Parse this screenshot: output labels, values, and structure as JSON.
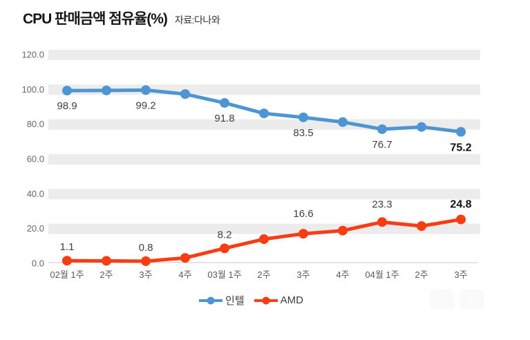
{
  "header": {
    "title": "CPU 판매금액 점유율(%)",
    "source": "자료:다나와"
  },
  "chart_data": {
    "type": "line",
    "title": "CPU 판매금액 점유율(%)",
    "source_note": "자료:다나와",
    "categories": [
      "02월 1주",
      "2주",
      "3주",
      "4주",
      "03월 1주",
      "2주",
      "3주",
      "4주",
      "04월 1주",
      "2주",
      "3주"
    ],
    "series": [
      {
        "name": "인텔",
        "color": "#4E95D4",
        "values": [
          98.9,
          99.0,
          99.2,
          96.9,
          91.8,
          85.8,
          83.5,
          80.8,
          76.7,
          78.0,
          75.2
        ],
        "labeled_indices": [
          0,
          2,
          4,
          6,
          8,
          10
        ],
        "label_position": "below"
      },
      {
        "name": "AMD",
        "color": "#F83C14",
        "values": [
          1.1,
          1.0,
          0.8,
          2.7,
          8.2,
          13.5,
          16.6,
          18.4,
          23.3,
          21.0,
          24.8
        ],
        "labeled_indices": [
          0,
          2,
          4,
          6,
          8,
          10
        ],
        "label_position": "above"
      }
    ],
    "ylim": [
      0,
      120
    ],
    "ytick_labels": [
      "120.0",
      "100.0",
      "80.0",
      "60.0",
      "40.0",
      "20.0",
      "0.0"
    ],
    "grid": "horizontal-bands",
    "legend_position": "bottom",
    "emphasized_last_label": true
  },
  "colors": {
    "band": "#ECECEC",
    "axis_line": "#C8C8C8",
    "tick_text": "#666666",
    "data_label": "#3F3F3F",
    "emphasis_label": "#111111"
  },
  "watermark": {
    "icons": [
      "watermark-arrow-icon",
      "watermark-play-icon"
    ]
  }
}
